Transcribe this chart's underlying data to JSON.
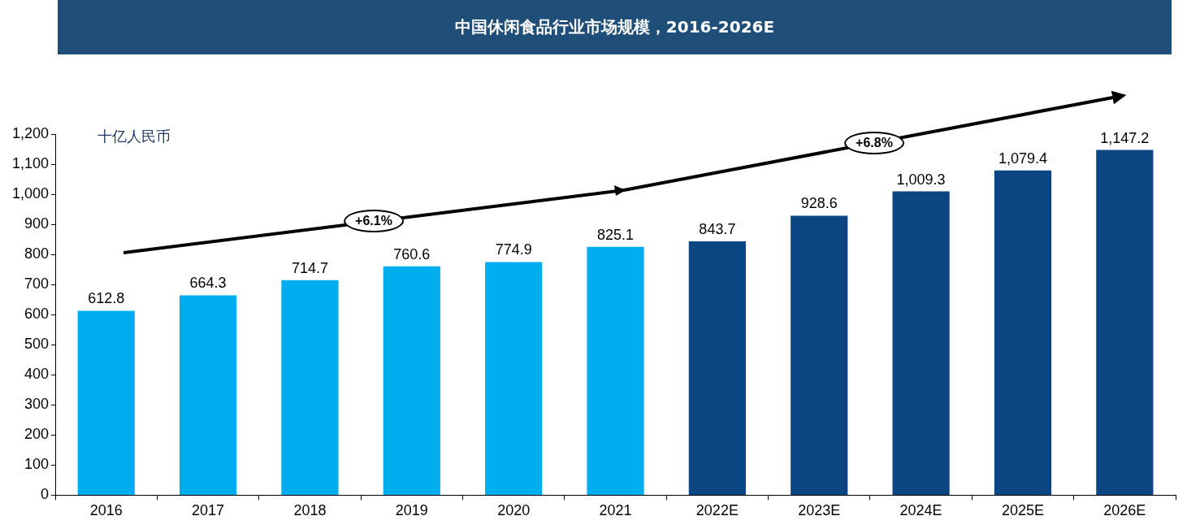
{
  "chart_data": {
    "type": "bar",
    "title": "中国休闲食品行业市场规模，2016-2026E",
    "ylabel": "十亿人民币",
    "categories": [
      "2016",
      "2017",
      "2018",
      "2019",
      "2020",
      "2021",
      "2022E",
      "2023E",
      "2024E",
      "2025E",
      "2026E"
    ],
    "values": [
      612.8,
      664.3,
      714.7,
      760.6,
      774.9,
      825.1,
      843.7,
      928.6,
      1009.3,
      1079.4,
      1147.2
    ],
    "colors": [
      "#00aeef",
      "#00aeef",
      "#00aeef",
      "#00aeef",
      "#00aeef",
      "#00aeef",
      "#0b4582",
      "#0b4582",
      "#0b4582",
      "#0b4582",
      "#0b4582"
    ],
    "value_labels": [
      "612.8",
      "664.3",
      "714.7",
      "760.6",
      "774.9",
      "825.1",
      "843.7",
      "928.6",
      "1,009.3",
      "1,079.4",
      "1,147.2"
    ],
    "ylim": [
      0,
      1200
    ],
    "yticks": [
      0,
      100,
      200,
      300,
      400,
      500,
      600,
      700,
      800,
      900,
      {
        "value": 1000,
        "label": "1,000"
      },
      {
        "value": 1100,
        "label": "1,100"
      },
      {
        "value": 1200,
        "label": "1,200"
      }
    ],
    "annotations": [
      "+6.1%",
      "+6.8%"
    ],
    "grid": false,
    "legend": false
  }
}
